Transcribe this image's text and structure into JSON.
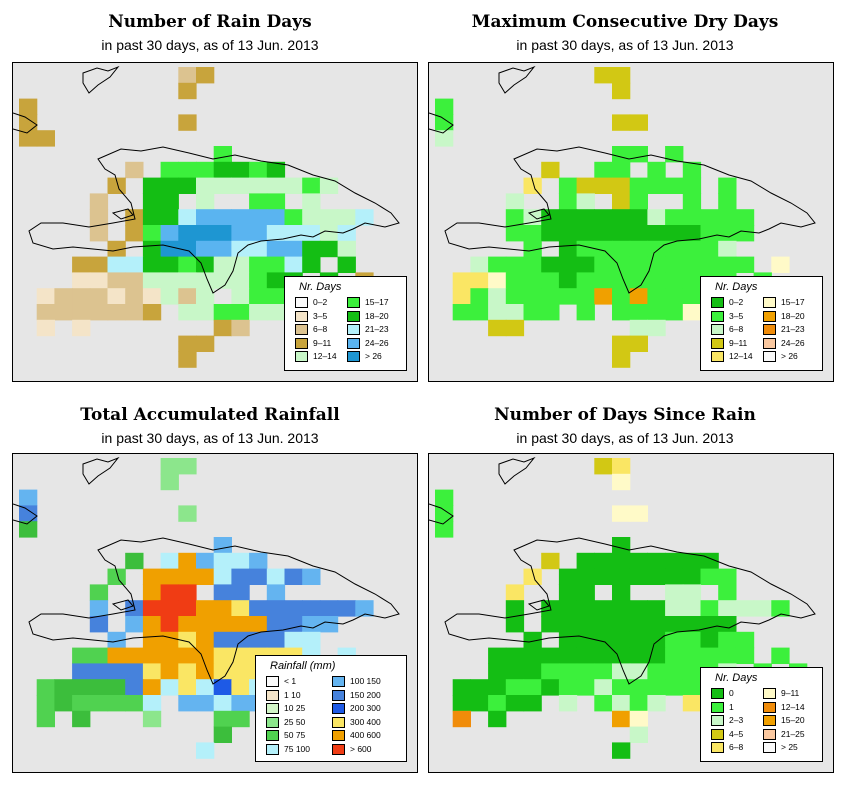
{
  "palettes": {
    "rain_days": [
      "#fafafa",
      "#f4e4c8",
      "#dcc390",
      "#c8a43c",
      "#c8f7c8",
      "#3cf03c",
      "#14be14",
      "#b4f0fa",
      "#5ab4f0",
      "#1e96d2"
    ],
    "dry_days": [
      "#14be14",
      "#3cf03c",
      "#c8f7c8",
      "#d2c814",
      "#fae664",
      "#fffac8",
      "#f0a000",
      "#f08c0a",
      "#fac8a0",
      "#fafafa"
    ],
    "rainfall": [
      "#fafafa",
      "#f4e4c8",
      "#d2f5c8",
      "#8ce68c",
      "#50d250",
      "#3cbe3c",
      "#b4f0fa",
      "#64b4f0",
      "#4682dc",
      "#1e5ae6",
      "#fae664",
      "#f0a000",
      "#f03c14"
    ],
    "since_rain": [
      "#14be14",
      "#3cf03c",
      "#c8f7c8",
      "#d2c814",
      "#fae664",
      "#fffac8",
      "#f08c0a",
      "#f0a000",
      "#fac8a0",
      "#fafafa"
    ]
  },
  "panels": [
    {
      "id": "rain_days",
      "title": "Number of Rain Days",
      "subtitle": "in past 30 days, as of  13 Jun. 2013",
      "legend": {
        "title": "Nr. Days",
        "items": [
          {
            "label": "0–2",
            "color": "#fafafa"
          },
          {
            "label": "3–5",
            "color": "#f4e4c8"
          },
          {
            "label": "6–8",
            "color": "#dcc390"
          },
          {
            "label": "9–11",
            "color": "#c8a43c"
          },
          {
            "label": "12–14",
            "color": "#c8f7c8"
          },
          {
            "label": "15–17",
            "color": "#3cf03c"
          },
          {
            "label": "18–20",
            "color": "#14be14"
          },
          {
            "label": "21–23",
            "color": "#b4f0fa"
          },
          {
            "label": "24–26",
            "color": "#5ab4f0"
          },
          {
            "label": "> 26",
            "color": "#1e96d2"
          }
        ]
      }
    },
    {
      "id": "dry_days",
      "title": "Maximum Consecutive Dry Days",
      "subtitle": "in past 30 days, as of  13 Jun. 2013",
      "legend": {
        "title": "Nr. Days",
        "items": [
          {
            "label": "0–2",
            "color": "#14be14"
          },
          {
            "label": "3–5",
            "color": "#3cf03c"
          },
          {
            "label": "6–8",
            "color": "#c8f7c8"
          },
          {
            "label": "9–11",
            "color": "#d2c814"
          },
          {
            "label": "12–14",
            "color": "#fae664"
          },
          {
            "label": "15–17",
            "color": "#fffac8"
          },
          {
            "label": "18–20",
            "color": "#f0a000"
          },
          {
            "label": "21–23",
            "color": "#f08c0a"
          },
          {
            "label": "24–26",
            "color": "#fac8a0"
          },
          {
            "label": "> 26",
            "color": "#fafafa"
          }
        ]
      }
    },
    {
      "id": "rainfall",
      "title": "Total Accumulated Rainfall",
      "subtitle": "in past 30 days, as of  13 Jun. 2013",
      "legend": {
        "title": "Rainfall (mm)",
        "items": [
          {
            "label": "< 1",
            "color": "#fafafa"
          },
          {
            "label": "1   10",
            "color": "#f4e4c8"
          },
          {
            "label": "10   25",
            "color": "#d2f5c8"
          },
          {
            "label": "25   50",
            "color": "#8ce68c"
          },
          {
            "label": "50   75",
            "color": "#50d250"
          },
          {
            "label": "75   100",
            "color": "#b4f0fa"
          },
          {
            "label": "100   150",
            "color": "#64b4f0"
          },
          {
            "label": "150   200",
            "color": "#4682dc"
          },
          {
            "label": "200   300",
            "color": "#1e5ae6"
          },
          {
            "label": "300   400",
            "color": "#fae664"
          },
          {
            "label": "400   600",
            "color": "#f0a000"
          },
          {
            "label": "> 600",
            "color": "#f03c14"
          }
        ]
      }
    },
    {
      "id": "since_rain",
      "title": "Number of Days Since Rain",
      "subtitle": "in past 30 days, as of  13 Jun. 2013",
      "legend": {
        "title": "Nr. Days",
        "items": [
          {
            "label": "0",
            "color": "#14be14"
          },
          {
            "label": "1",
            "color": "#3cf03c"
          },
          {
            "label": "2–3",
            "color": "#c8f7c8"
          },
          {
            "label": "4–5",
            "color": "#d2c814"
          },
          {
            "label": "6–8",
            "color": "#fae664"
          },
          {
            "label": "9–11",
            "color": "#fffac8"
          },
          {
            "label": "12–14",
            "color": "#f08c0a"
          },
          {
            "label": "15–20",
            "color": "#f0a000"
          },
          {
            "label": "21–25",
            "color": "#fac8a0"
          },
          {
            "label": "> 25",
            "color": "#fafafa"
          }
        ]
      }
    }
  ],
  "grids": {
    "cols": 21,
    "rain_days": [
      ".........23..........",
      ".........3...........",
      "3....................",
      "3........3...........",
      "33...................",
      "...........5.........",
      "......2.5556656......",
      ".....3.66644444454...",
      "....2..66.4..55.4....",
      "....2.36678888854447.",
      "....2.3589998877747..",
      ".....3.699887788664..",
      "...33776656445576.6..",
      "...1122444444566.6.3.",
      ".1222121424.4555453..",
      ".2222223.4455445..3..",
      ".1.1.......32........",
      ".........33..........",
      ".........3..........."
    ],
    "dry_days": [
      ".........33..........",
      "..........3..........",
      "1....................",
      "1.........33.........",
      "2....................",
      "..........11.1.......",
      "......3..11.1.1......",
      ".....4.13331111.1....",
      "....2..12.31..1.1....",
      "....12000000211111...",
      "....11000000000111...",
      ".....1.0111111112....",
      "..2111000111111111.5.",
      ".4451110111111111.1..",
      ".41211111616111111...",
      ".112211.1.11115111...",
      "...33......22........",
      "..........33.........",
      "..........3.........."
    ],
    "rainfall": [
      "........33...........",
      "........3............",
      "7....................",
      "8........3...........",
      "5....................",
      "...........7.........",
      "......5.6b7667.......",
      ".....4.bbbb688687....",
      "....4..bcc.88.7......",
      "....7.8cccbba8888887.",
      "....8.7bcbbbbb8877...",
      ".....7.bbab888866....",
      "...44bbbbbbaaaaa6.6..",
      "...8888ababaaaa666.7.",
      ".455558b6a69a6658676.",
      ".4544446.7767766..6..",
      ".4.5...3...44........",
      "...........5.........",
      "..........6.........."
    ],
    "since_rain": [
      ".........34..........",
      "..........5..........",
      "1....................",
      "1.........55.........",
      "1....................",
      "..........0..........",
      "......3.00000000.....",
      ".....4.0000000011....",
      "....4..00.0..22.1....",
      "....0.00000002212221.",
      "....0.00000000000....",
      ".....0.00000011011...",
      "...000000000011111.1.",
      "...00011112211112.1.1",
      ".0001101121111111....",
      ".00100.2.1212.4211...",
      ".6.0......75.........",
      "...........2.........",
      "..........0.........."
    ]
  }
}
